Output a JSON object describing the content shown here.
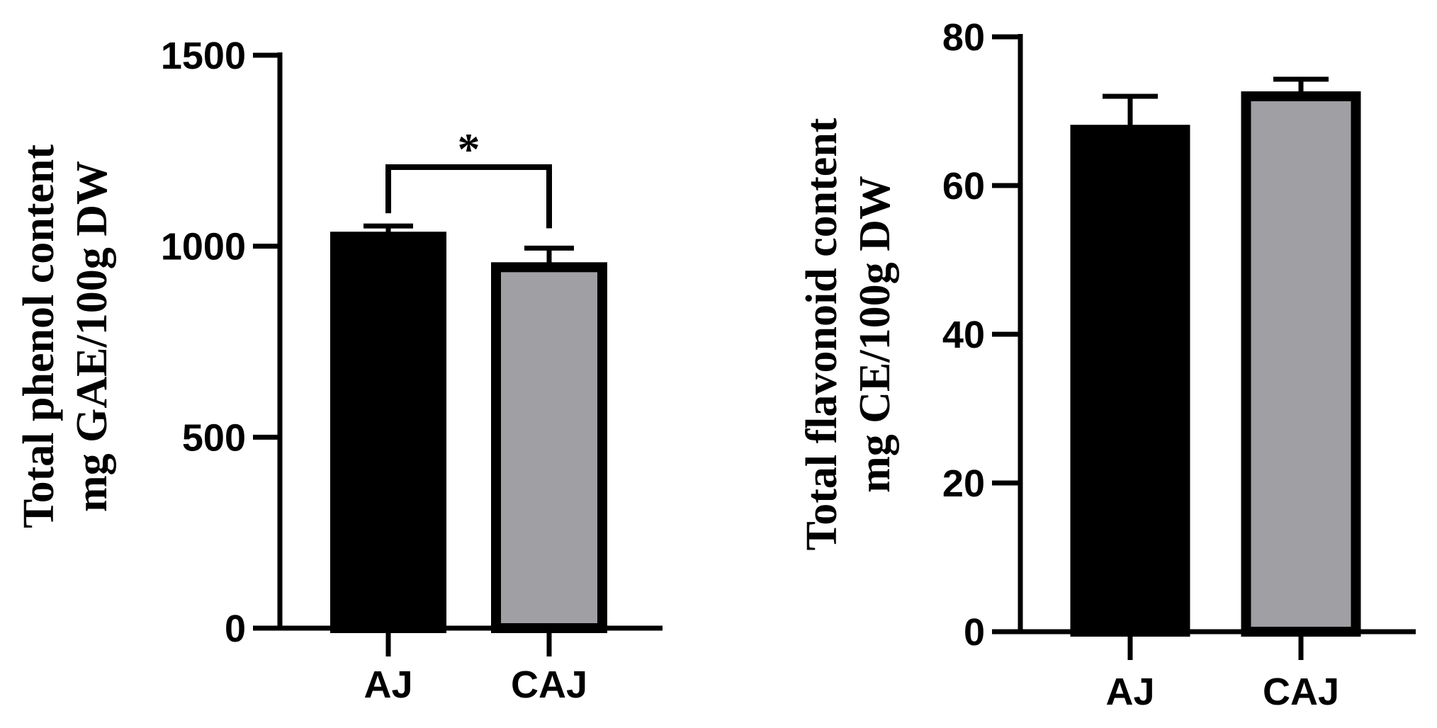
{
  "chart_data": [
    {
      "type": "bar",
      "categories": [
        "AJ",
        "CAJ"
      ],
      "values": [
        1025,
        945
      ],
      "errors": [
        28,
        50
      ],
      "colors": [
        "#000000",
        "#a09fa3"
      ],
      "ylabel_lines": [
        "Total phenol content",
        "mg GAE/100g DW"
      ],
      "ylim": [
        0,
        1500
      ],
      "yticks": [
        0,
        500,
        1000,
        1500
      ],
      "ytick_labels": [
        "0",
        "500",
        "1000",
        "1500"
      ],
      "significance": "*",
      "grid": false
    },
    {
      "type": "bar",
      "categories": [
        "AJ",
        "CAJ"
      ],
      "values": [
        67.5,
        72
      ],
      "errors": [
        4.5,
        2.3
      ],
      "colors": [
        "#000000",
        "#a09fa3"
      ],
      "ylabel_lines": [
        "Total flavonoid content",
        "mg CE/100g DW"
      ],
      "ylim": [
        0,
        80
      ],
      "yticks": [
        0,
        20,
        40,
        60,
        80
      ],
      "ytick_labels": [
        "0",
        "20",
        "40",
        "60",
        "80"
      ],
      "grid": false
    }
  ]
}
